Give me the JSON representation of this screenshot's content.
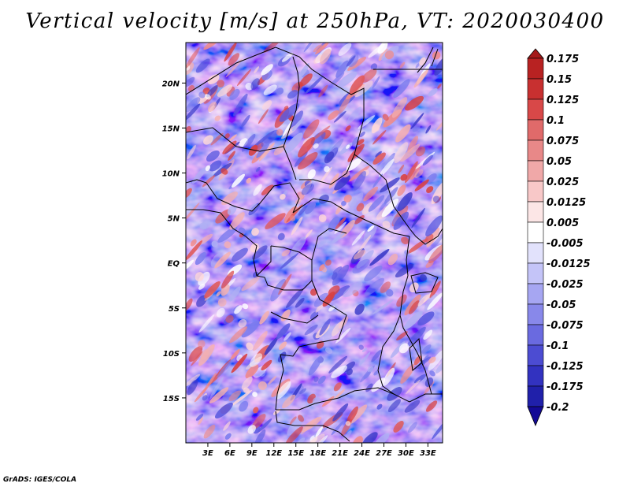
{
  "title": "Vertical velocity [m/s] at 250hPa, VT: 2020030400",
  "credit": "GrADS: IGES/COLA",
  "map": {
    "lon_range": [
      0,
      35
    ],
    "lat_range": [
      -20,
      24.5
    ],
    "lat_ticks": [
      {
        "lat": 20,
        "label": "20N"
      },
      {
        "lat": 15,
        "label": "15N"
      },
      {
        "lat": 10,
        "label": "10N"
      },
      {
        "lat": 5,
        "label": "5N"
      },
      {
        "lat": 0,
        "label": "EQ"
      },
      {
        "lat": -5,
        "label": "5S"
      },
      {
        "lat": -10,
        "label": "10S"
      },
      {
        "lat": -15,
        "label": "15S"
      }
    ],
    "lon_ticks": [
      {
        "lon": 3,
        "label": "3E"
      },
      {
        "lon": 6,
        "label": "6E"
      },
      {
        "lon": 9,
        "label": "9E"
      },
      {
        "lon": 12,
        "label": "12E"
      },
      {
        "lon": 15,
        "label": "15E"
      },
      {
        "lon": 18,
        "label": "18E"
      },
      {
        "lon": 21,
        "label": "21E"
      },
      {
        "lon": 24,
        "label": "24E"
      },
      {
        "lon": 27,
        "label": "27E"
      },
      {
        "lon": 30,
        "label": "30E"
      },
      {
        "lon": 33,
        "label": "33E"
      }
    ]
  },
  "colorbar": {
    "labels": [
      "0.175",
      "0.15",
      "0.125",
      "0.1",
      "0.075",
      "0.05",
      "0.025",
      "0.0125",
      "0.005",
      "-0.005",
      "-0.0125",
      "-0.025",
      "-0.05",
      "-0.075",
      "-0.1",
      "-0.125",
      "-0.175",
      "-0.2"
    ],
    "colors": [
      "#a51a1a",
      "#b82222",
      "#c83030",
      "#d84848",
      "#e06a6a",
      "#e88888",
      "#f0a8a8",
      "#f8c8c8",
      "#fce6e6",
      "#ffffff",
      "#e2e2fc",
      "#c4c4f8",
      "#a6a6f2",
      "#8888ea",
      "#6a6ae0",
      "#4c4cd2",
      "#3232c0",
      "#2020aa",
      "#140a96"
    ]
  }
}
